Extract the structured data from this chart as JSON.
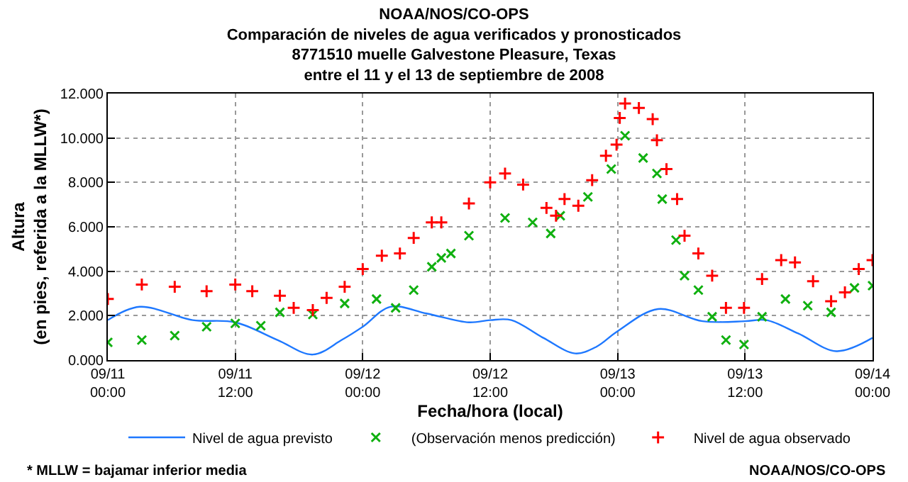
{
  "chart_data": {
    "type": "line",
    "title": "NOAA/NOS/CO-OPS\nComparación de niveles de agua verificados y pronosticados\n8771510 muelle Galvestone Pleasure, Texas\nentre el 11 y el 13 de septiembre de 2008",
    "xlabel": "Fecha/hora (local)",
    "ylabel": "Altura\n(en pies, referida a la MLLW*)",
    "annotations": [
      "* MLLW = bajamar inferior media",
      "NOAA/NOS/CO-OPS"
    ],
    "xlim": [
      "2008-09-11T00:00",
      "2008-09-14T00:00"
    ],
    "xticks": [
      {
        "value": "2008-09-11T00:00",
        "label": "09/11\n00:00"
      },
      {
        "value": "2008-09-11T12:00",
        "label": "09/11\n12:00"
      },
      {
        "value": "2008-09-12T00:00",
        "label": "09/12\n00:00"
      },
      {
        "value": "2008-09-12T12:00",
        "label": "09/12\n12:00"
      },
      {
        "value": "2008-09-13T00:00",
        "label": "09/13\n00:00"
      },
      {
        "value": "2008-09-13T12:00",
        "label": "09/13\n12:00"
      },
      {
        "value": "2008-09-14T00:00",
        "label": "09/14\n00:00"
      }
    ],
    "ylim": [
      0,
      12
    ],
    "yticks": [
      {
        "value": 0,
        "label": "0.000"
      },
      {
        "value": 2,
        "label": "2.000"
      },
      {
        "value": 4,
        "label": "4.000"
      },
      {
        "value": 6,
        "label": "6.000"
      },
      {
        "value": 8,
        "label": "8.000"
      },
      {
        "value": 10,
        "label": "10.000"
      },
      {
        "value": 12,
        "label": "12.000"
      }
    ],
    "grid": true,
    "legend": "bottom",
    "series": [
      {
        "name": "Nivel de agua previsto",
        "color": "#1e78ff",
        "marker": "none",
        "x": [
          "2008-09-11T00:00",
          "2008-09-11T03:00",
          "2008-09-11T08:00",
          "2008-09-11T12:00",
          "2008-09-11T16:00",
          "2008-09-11T19:18",
          "2008-09-11T22:00",
          "2008-09-12T00:00",
          "2008-09-12T02:36",
          "2008-09-12T06:00",
          "2008-09-12T10:00",
          "2008-09-12T12:00",
          "2008-09-12T14:00",
          "2008-09-12T17:00",
          "2008-09-12T20:00",
          "2008-09-12T22:00",
          "2008-09-13T00:00",
          "2008-09-13T03:48",
          "2008-09-13T08:00",
          "2008-09-13T12:00",
          "2008-09-13T14:00",
          "2008-09-13T17:00",
          "2008-09-13T20:36",
          "2008-09-14T00:00"
        ],
        "values": [
          1.8,
          2.4,
          1.8,
          1.7,
          0.9,
          0.25,
          0.9,
          1.5,
          2.4,
          2.1,
          1.7,
          1.8,
          1.8,
          1.0,
          0.3,
          0.6,
          1.3,
          2.3,
          1.75,
          1.75,
          1.8,
          1.2,
          0.4,
          1.0
        ]
      },
      {
        "name": "(Observación menos predicción)",
        "type": "scatter",
        "color": "#10b010",
        "marker": "x",
        "x": [
          "2008-09-11T00:00",
          "2008-09-11T03:12",
          "2008-09-11T06:18",
          "2008-09-11T09:18",
          "2008-09-11T12:00",
          "2008-09-11T14:24",
          "2008-09-11T16:12",
          "2008-09-11T19:18",
          "2008-09-11T22:18",
          "2008-09-12T01:18",
          "2008-09-12T03:06",
          "2008-09-12T04:48",
          "2008-09-12T06:30",
          "2008-09-12T07:24",
          "2008-09-12T08:18",
          "2008-09-12T10:00",
          "2008-09-12T13:24",
          "2008-09-12T16:00",
          "2008-09-12T17:42",
          "2008-09-12T18:36",
          "2008-09-12T21:12",
          "2008-09-12T23:24",
          "2008-09-13T00:42",
          "2008-09-13T02:24",
          "2008-09-13T03:42",
          "2008-09-13T04:12",
          "2008-09-13T05:30",
          "2008-09-13T06:18",
          "2008-09-13T07:36",
          "2008-09-13T08:54",
          "2008-09-13T10:12",
          "2008-09-13T11:54",
          "2008-09-13T13:36",
          "2008-09-13T15:48",
          "2008-09-13T17:54",
          "2008-09-13T20:06",
          "2008-09-13T22:18",
          "2008-09-14T00:00"
        ],
        "values": [
          0.8,
          0.9,
          1.1,
          1.5,
          1.65,
          1.55,
          2.15,
          2.05,
          2.55,
          2.75,
          2.35,
          3.15,
          4.2,
          4.6,
          4.8,
          5.6,
          6.4,
          6.2,
          5.7,
          6.5,
          7.35,
          8.6,
          10.1,
          9.1,
          8.4,
          7.25,
          5.4,
          3.8,
          3.15,
          1.95,
          0.9,
          0.7,
          1.95,
          2.75,
          2.45,
          2.15,
          3.25,
          3.35
        ]
      },
      {
        "name": "Nivel de agua observado",
        "type": "scatter",
        "color": "#ff0000",
        "marker": "cross",
        "x": [
          "2008-09-11T00:00",
          "2008-09-11T03:12",
          "2008-09-11T06:18",
          "2008-09-11T09:18",
          "2008-09-11T12:00",
          "2008-09-11T13:36",
          "2008-09-11T16:12",
          "2008-09-11T17:30",
          "2008-09-11T19:18",
          "2008-09-11T20:36",
          "2008-09-11T22:18",
          "2008-09-12T00:00",
          "2008-09-12T01:48",
          "2008-09-12T03:30",
          "2008-09-12T04:48",
          "2008-09-12T06:30",
          "2008-09-12T07:24",
          "2008-09-12T10:00",
          "2008-09-12T12:00",
          "2008-09-12T13:24",
          "2008-09-12T15:06",
          "2008-09-12T17:18",
          "2008-09-12T18:12",
          "2008-09-12T19:00",
          "2008-09-12T20:18",
          "2008-09-12T21:36",
          "2008-09-12T22:54",
          "2008-09-12T23:54",
          "2008-09-13T00:12",
          "2008-09-13T00:42",
          "2008-09-13T02:00",
          "2008-09-13T03:18",
          "2008-09-13T03:42",
          "2008-09-13T04:36",
          "2008-09-13T05:36",
          "2008-09-13T06:18",
          "2008-09-13T07:36",
          "2008-09-13T08:54",
          "2008-09-13T10:12",
          "2008-09-13T11:54",
          "2008-09-13T13:36",
          "2008-09-13T15:24",
          "2008-09-13T16:42",
          "2008-09-13T18:24",
          "2008-09-13T20:06",
          "2008-09-13T21:24",
          "2008-09-13T22:42",
          "2008-09-14T00:00"
        ],
        "values": [
          2.75,
          3.4,
          3.3,
          3.1,
          3.4,
          3.1,
          2.9,
          2.35,
          2.25,
          2.8,
          3.3,
          4.1,
          4.7,
          4.8,
          5.5,
          6.2,
          6.2,
          7.05,
          8.0,
          8.4,
          7.9,
          6.85,
          6.5,
          7.25,
          6.95,
          8.1,
          9.2,
          9.7,
          10.9,
          11.55,
          11.35,
          10.85,
          9.9,
          8.6,
          7.25,
          5.6,
          4.8,
          3.8,
          2.35,
          2.35,
          3.65,
          4.5,
          4.4,
          3.55,
          2.65,
          3.05,
          4.1,
          4.5
        ]
      }
    ]
  }
}
